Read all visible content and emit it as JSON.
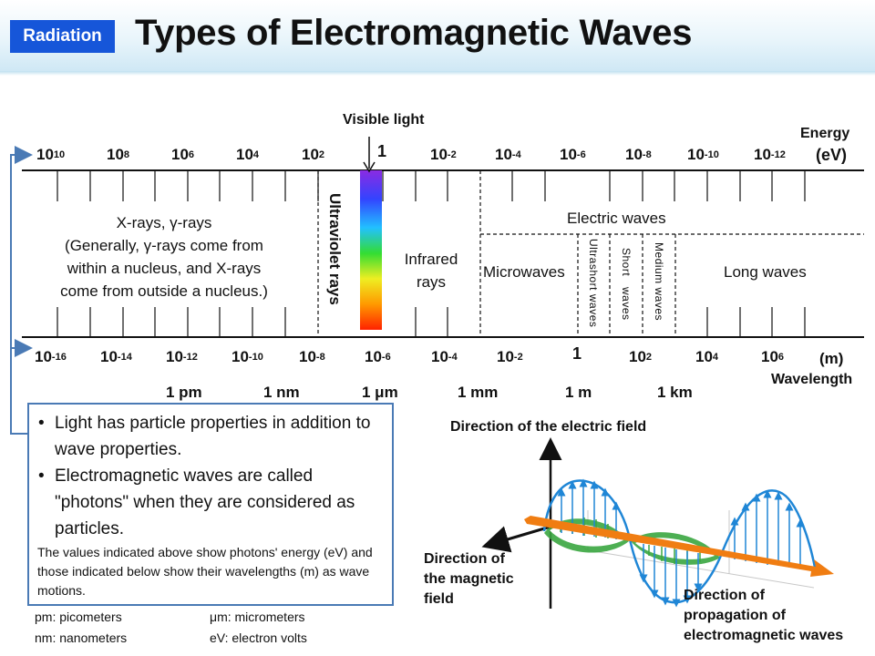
{
  "header": {
    "badge": "Radiation",
    "title": "Types of Electromagnetic Waves"
  },
  "spectrum": {
    "visible_light_label": "Visible light",
    "energy_axis": {
      "unit_line1": "Energy",
      "unit_line2": "(eV)",
      "ticks": [
        {
          "base": "10",
          "exp": "10"
        },
        {
          "base": "10",
          "exp": "8"
        },
        {
          "base": "10",
          "exp": "6"
        },
        {
          "base": "10",
          "exp": "4"
        },
        {
          "base": "10",
          "exp": "2"
        },
        {
          "base": "1",
          "exp": ""
        },
        {
          "base": "10",
          "exp": "-2"
        },
        {
          "base": "10",
          "exp": "-4"
        },
        {
          "base": "10",
          "exp": "-6"
        },
        {
          "base": "10",
          "exp": "-8"
        },
        {
          "base": "10",
          "exp": "-10"
        },
        {
          "base": "10",
          "exp": "-12"
        }
      ]
    },
    "wavelength_axis": {
      "unit": "(m)",
      "title": "Wavelength",
      "ticks": [
        {
          "base": "10",
          "exp": "-16"
        },
        {
          "base": "10",
          "exp": "-14"
        },
        {
          "base": "10",
          "exp": "-12"
        },
        {
          "base": "10",
          "exp": "-10"
        },
        {
          "base": "10",
          "exp": "-8"
        },
        {
          "base": "10",
          "exp": "-6"
        },
        {
          "base": "10",
          "exp": "-4"
        },
        {
          "base": "10",
          "exp": "-2"
        },
        {
          "base": "1",
          "exp": ""
        },
        {
          "base": "10",
          "exp": "2"
        },
        {
          "base": "10",
          "exp": "4"
        },
        {
          "base": "10",
          "exp": "6"
        }
      ],
      "named_lengths": [
        "1 pm",
        "1 nm",
        "1 μm",
        "1 mm",
        "1 m",
        "1 km"
      ]
    },
    "regions": {
      "xray_gamma": [
        "X-rays, γ-rays",
        "(Generally, γ-rays come from",
        "within a nucleus, and X-rays",
        "come from outside a nucleus.)"
      ],
      "ultraviolet": "Ultraviolet rays",
      "infrared": [
        "Infrared",
        "rays"
      ],
      "electric_waves": "Electric waves",
      "microwaves": "Microwaves",
      "ultrashort": "Ultrashort waves",
      "short": "Short waves",
      "medium": "Medium waves",
      "long": "Long waves"
    }
  },
  "info_box": {
    "bullets": [
      "Light has particle properties in addition to wave properties.",
      "Electromagnetic waves are called \"photons\" when they are considered as particles."
    ],
    "note": "The values indicated above show photons' energy (eV) and those indicated below show their wavelengths (m) as wave motions."
  },
  "legend": [
    "pm: picometers",
    "μm: micrometers",
    "nm: nanometers",
    "eV: electron volts"
  ],
  "wave_diagram": {
    "electric_field_label": "Direction of the electric field",
    "magnetic_field_label": [
      "Direction of",
      "the magnetic",
      "field"
    ],
    "propagation_label": [
      "Direction of",
      "propagation of",
      "electromagnetic waves"
    ],
    "colors": {
      "electric": "#1f86d6",
      "magnetic": "#3aa640",
      "propagation": "#f07d12"
    }
  }
}
